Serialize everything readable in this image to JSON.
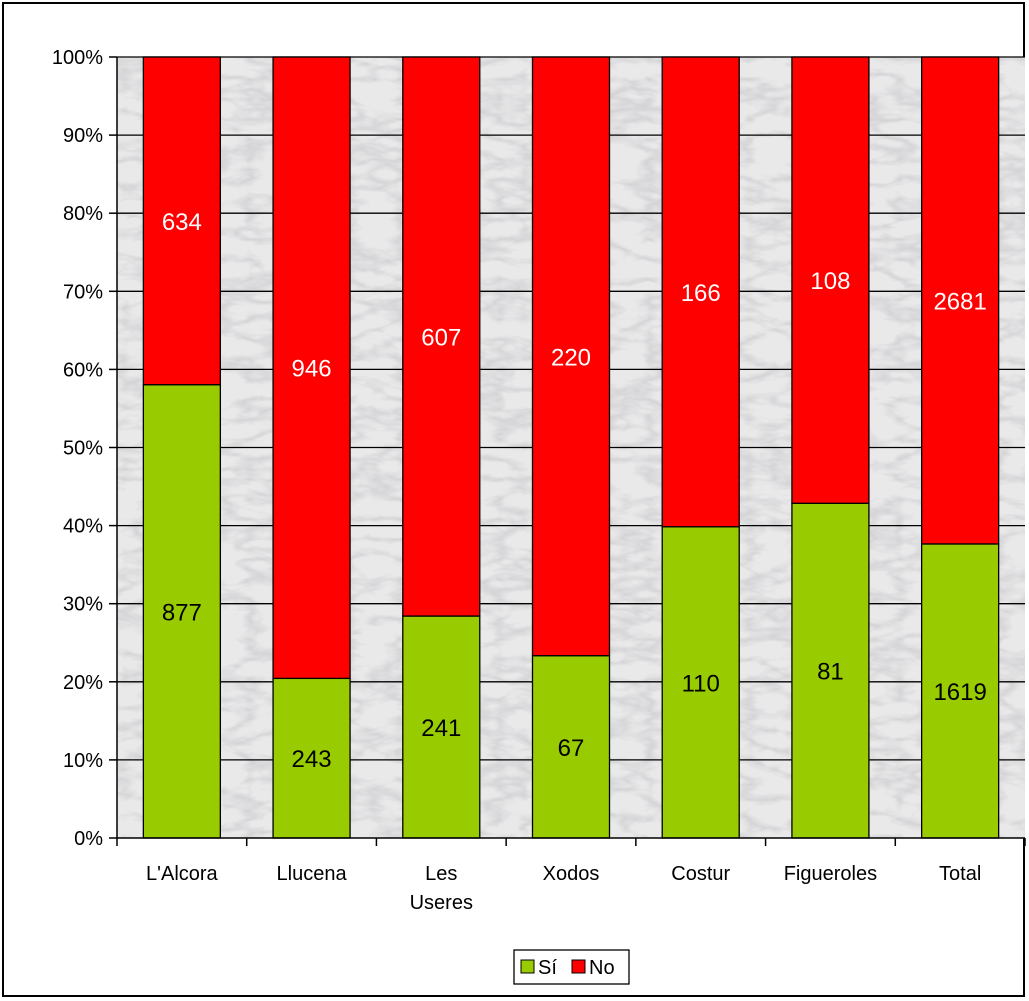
{
  "chart_data": {
    "type": "bar",
    "stacked": true,
    "normalized": true,
    "categories": [
      [
        "L'Alcora"
      ],
      [
        "Llucena"
      ],
      [
        "Les",
        "Useres"
      ],
      [
        "Xodos"
      ],
      [
        "Costur"
      ],
      [
        "Figueroles"
      ],
      [
        "Total"
      ]
    ],
    "series": [
      {
        "name": "Sí",
        "color": "#99cc00",
        "values": [
          877,
          243,
          241,
          67,
          110,
          81,
          1619
        ]
      },
      {
        "name": "No",
        "color": "#ff0000",
        "values": [
          634,
          946,
          607,
          220,
          166,
          108,
          2681
        ]
      }
    ],
    "y_ticks": [
      "0%",
      "10%",
      "20%",
      "30%",
      "40%",
      "50%",
      "60%",
      "70%",
      "80%",
      "90%",
      "100%"
    ],
    "ylim": [
      0,
      100
    ],
    "grid": true,
    "legend": "bottom-center"
  }
}
